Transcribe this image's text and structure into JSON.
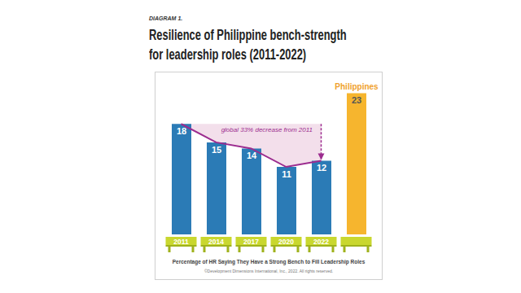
{
  "chart_data": {
    "type": "bar",
    "diagram_label": "DIAGRAM 1.",
    "title": "Resilience of Philippine bench-strength\nfor leadership roles (2011-2022)",
    "x_label": "Percentage of HR Saying They Have a Strong Bench to Fill Leadership Roles",
    "annotations": [
      "global 33% decrease from 2011"
    ],
    "note": "©Development Dimensions International, Inc., 2022. All rights reserved.",
    "categories": [
      "2011",
      "2014",
      "2017",
      "2020",
      "2022",
      null
    ],
    "series": [
      {
        "color": "#2b7bb6",
        "values": [
          18,
          15,
          14,
          11,
          12,
          null
        ]
      },
      {
        "name": "Philippines",
        "color": "#f6b52e",
        "values": [
          null,
          null,
          null,
          null,
          null,
          23
        ]
      },
      {
        "type": "line",
        "color": "#9c2c8f",
        "values": [
          18,
          15,
          14,
          11,
          12,
          null
        ]
      }
    ],
    "ylim": [
      0,
      24
    ],
    "yticks": [
      0,
      24
    ],
    "grid": false,
    "data_labels": true,
    "tick_labels": "x"
  }
}
